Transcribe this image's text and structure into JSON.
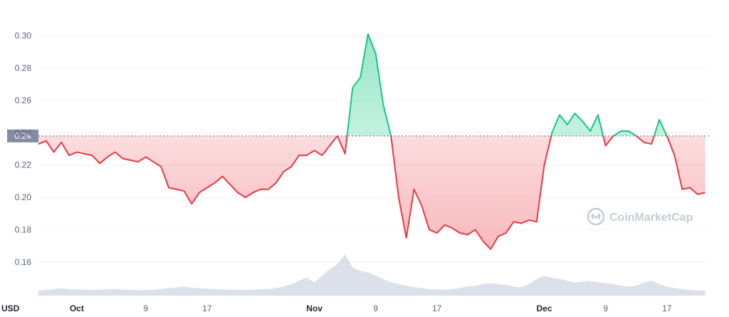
{
  "chart_data": {
    "type": "line",
    "currency": "USD",
    "reference_label": "0.24",
    "reference_value": 0.238,
    "ylim": [
      0.14,
      0.31
    ],
    "y_ticks": [
      "0.16",
      "0.18",
      "0.20",
      "0.22",
      "0.24",
      "0.26",
      "0.28",
      "0.30"
    ],
    "y_tick_values": [
      0.16,
      0.18,
      0.2,
      0.22,
      0.24,
      0.26,
      0.28,
      0.3
    ],
    "x_ticks": [
      {
        "label": "Oct",
        "day": 5,
        "month": true
      },
      {
        "label": "9",
        "day": 14,
        "month": false
      },
      {
        "label": "17",
        "day": 22,
        "month": false
      },
      {
        "label": "Nov",
        "day": 36,
        "month": true
      },
      {
        "label": "9",
        "day": 44,
        "month": false
      },
      {
        "label": "17",
        "day": 52,
        "month": false
      },
      {
        "label": "Dec",
        "day": 66,
        "month": true
      },
      {
        "label": "9",
        "day": 74,
        "month": false
      },
      {
        "label": "17",
        "day": 82,
        "month": false
      }
    ],
    "xlim": [
      0,
      87.5
    ],
    "x": [
      0,
      1,
      2,
      3,
      4,
      5,
      6,
      7,
      8,
      9,
      10,
      11,
      12,
      13,
      14,
      15,
      16,
      17,
      18,
      19,
      20,
      21,
      22,
      23,
      24,
      25,
      26,
      27,
      28,
      29,
      30,
      31,
      32,
      33,
      34,
      35,
      36,
      37,
      38,
      39,
      40,
      41,
      42,
      43,
      44,
      45,
      46,
      47,
      48,
      49,
      50,
      51,
      52,
      53,
      54,
      55,
      56,
      57,
      58,
      59,
      60,
      61,
      62,
      63,
      64,
      65,
      66,
      67,
      68,
      69,
      70,
      71,
      72,
      73,
      74,
      75,
      76,
      77,
      78,
      79,
      80,
      81,
      82,
      83,
      84,
      85,
      86,
      87
    ],
    "price": [
      0.233,
      0.235,
      0.228,
      0.234,
      0.226,
      0.228,
      0.227,
      0.226,
      0.221,
      0.225,
      0.228,
      0.224,
      0.223,
      0.222,
      0.225,
      0.222,
      0.219,
      0.206,
      0.205,
      0.204,
      0.196,
      0.203,
      0.206,
      0.209,
      0.213,
      0.208,
      0.203,
      0.2,
      0.203,
      0.205,
      0.205,
      0.209,
      0.216,
      0.219,
      0.226,
      0.226,
      0.229,
      0.226,
      0.232,
      0.238,
      0.227,
      0.268,
      0.274,
      0.301,
      0.289,
      0.257,
      0.238,
      0.2,
      0.175,
      0.205,
      0.195,
      0.18,
      0.178,
      0.183,
      0.181,
      0.178,
      0.177,
      0.18,
      0.173,
      0.168,
      0.176,
      0.178,
      0.185,
      0.184,
      0.186,
      0.185,
      0.22,
      0.24,
      0.251,
      0.245,
      0.252,
      0.247,
      0.241,
      0.251,
      0.232,
      0.238,
      0.241,
      0.241,
      0.238,
      0.234,
      0.233,
      0.248,
      0.238,
      0.226,
      0.205,
      0.206,
      0.202,
      0.203
    ],
    "volume": [
      0.3,
      0.35,
      0.4,
      0.45,
      0.4,
      0.38,
      0.36,
      0.34,
      0.36,
      0.38,
      0.4,
      0.37,
      0.35,
      0.33,
      0.34,
      0.35,
      0.4,
      0.45,
      0.5,
      0.55,
      0.48,
      0.45,
      0.42,
      0.4,
      0.38,
      0.36,
      0.35,
      0.34,
      0.36,
      0.38,
      0.4,
      0.45,
      0.55,
      0.7,
      0.9,
      1.1,
      0.8,
      1.2,
      1.6,
      1.9,
      2.5,
      1.7,
      1.5,
      1.4,
      1.2,
      1.0,
      0.8,
      0.7,
      0.6,
      0.5,
      0.45,
      0.4,
      0.38,
      0.36,
      0.4,
      0.45,
      0.55,
      0.6,
      0.7,
      0.75,
      0.7,
      0.65,
      0.55,
      0.5,
      0.7,
      1.0,
      1.2,
      1.1,
      1.0,
      0.9,
      0.8,
      0.85,
      0.9,
      0.8,
      0.75,
      0.7,
      0.6,
      0.55,
      0.6,
      0.8,
      0.9,
      0.7,
      0.55,
      0.45,
      0.4,
      0.35,
      0.3,
      0.3
    ],
    "colors": {
      "up": "#16c784",
      "down": "#ea3943",
      "grid": "#eff2f5",
      "reference_line": "#58667e",
      "reference_box": "#858ca2",
      "volume_fill": "#cfd6e4"
    }
  },
  "watermark": {
    "text": "CoinMarketCap",
    "icon": "coinmarketcap-logo-icon"
  }
}
